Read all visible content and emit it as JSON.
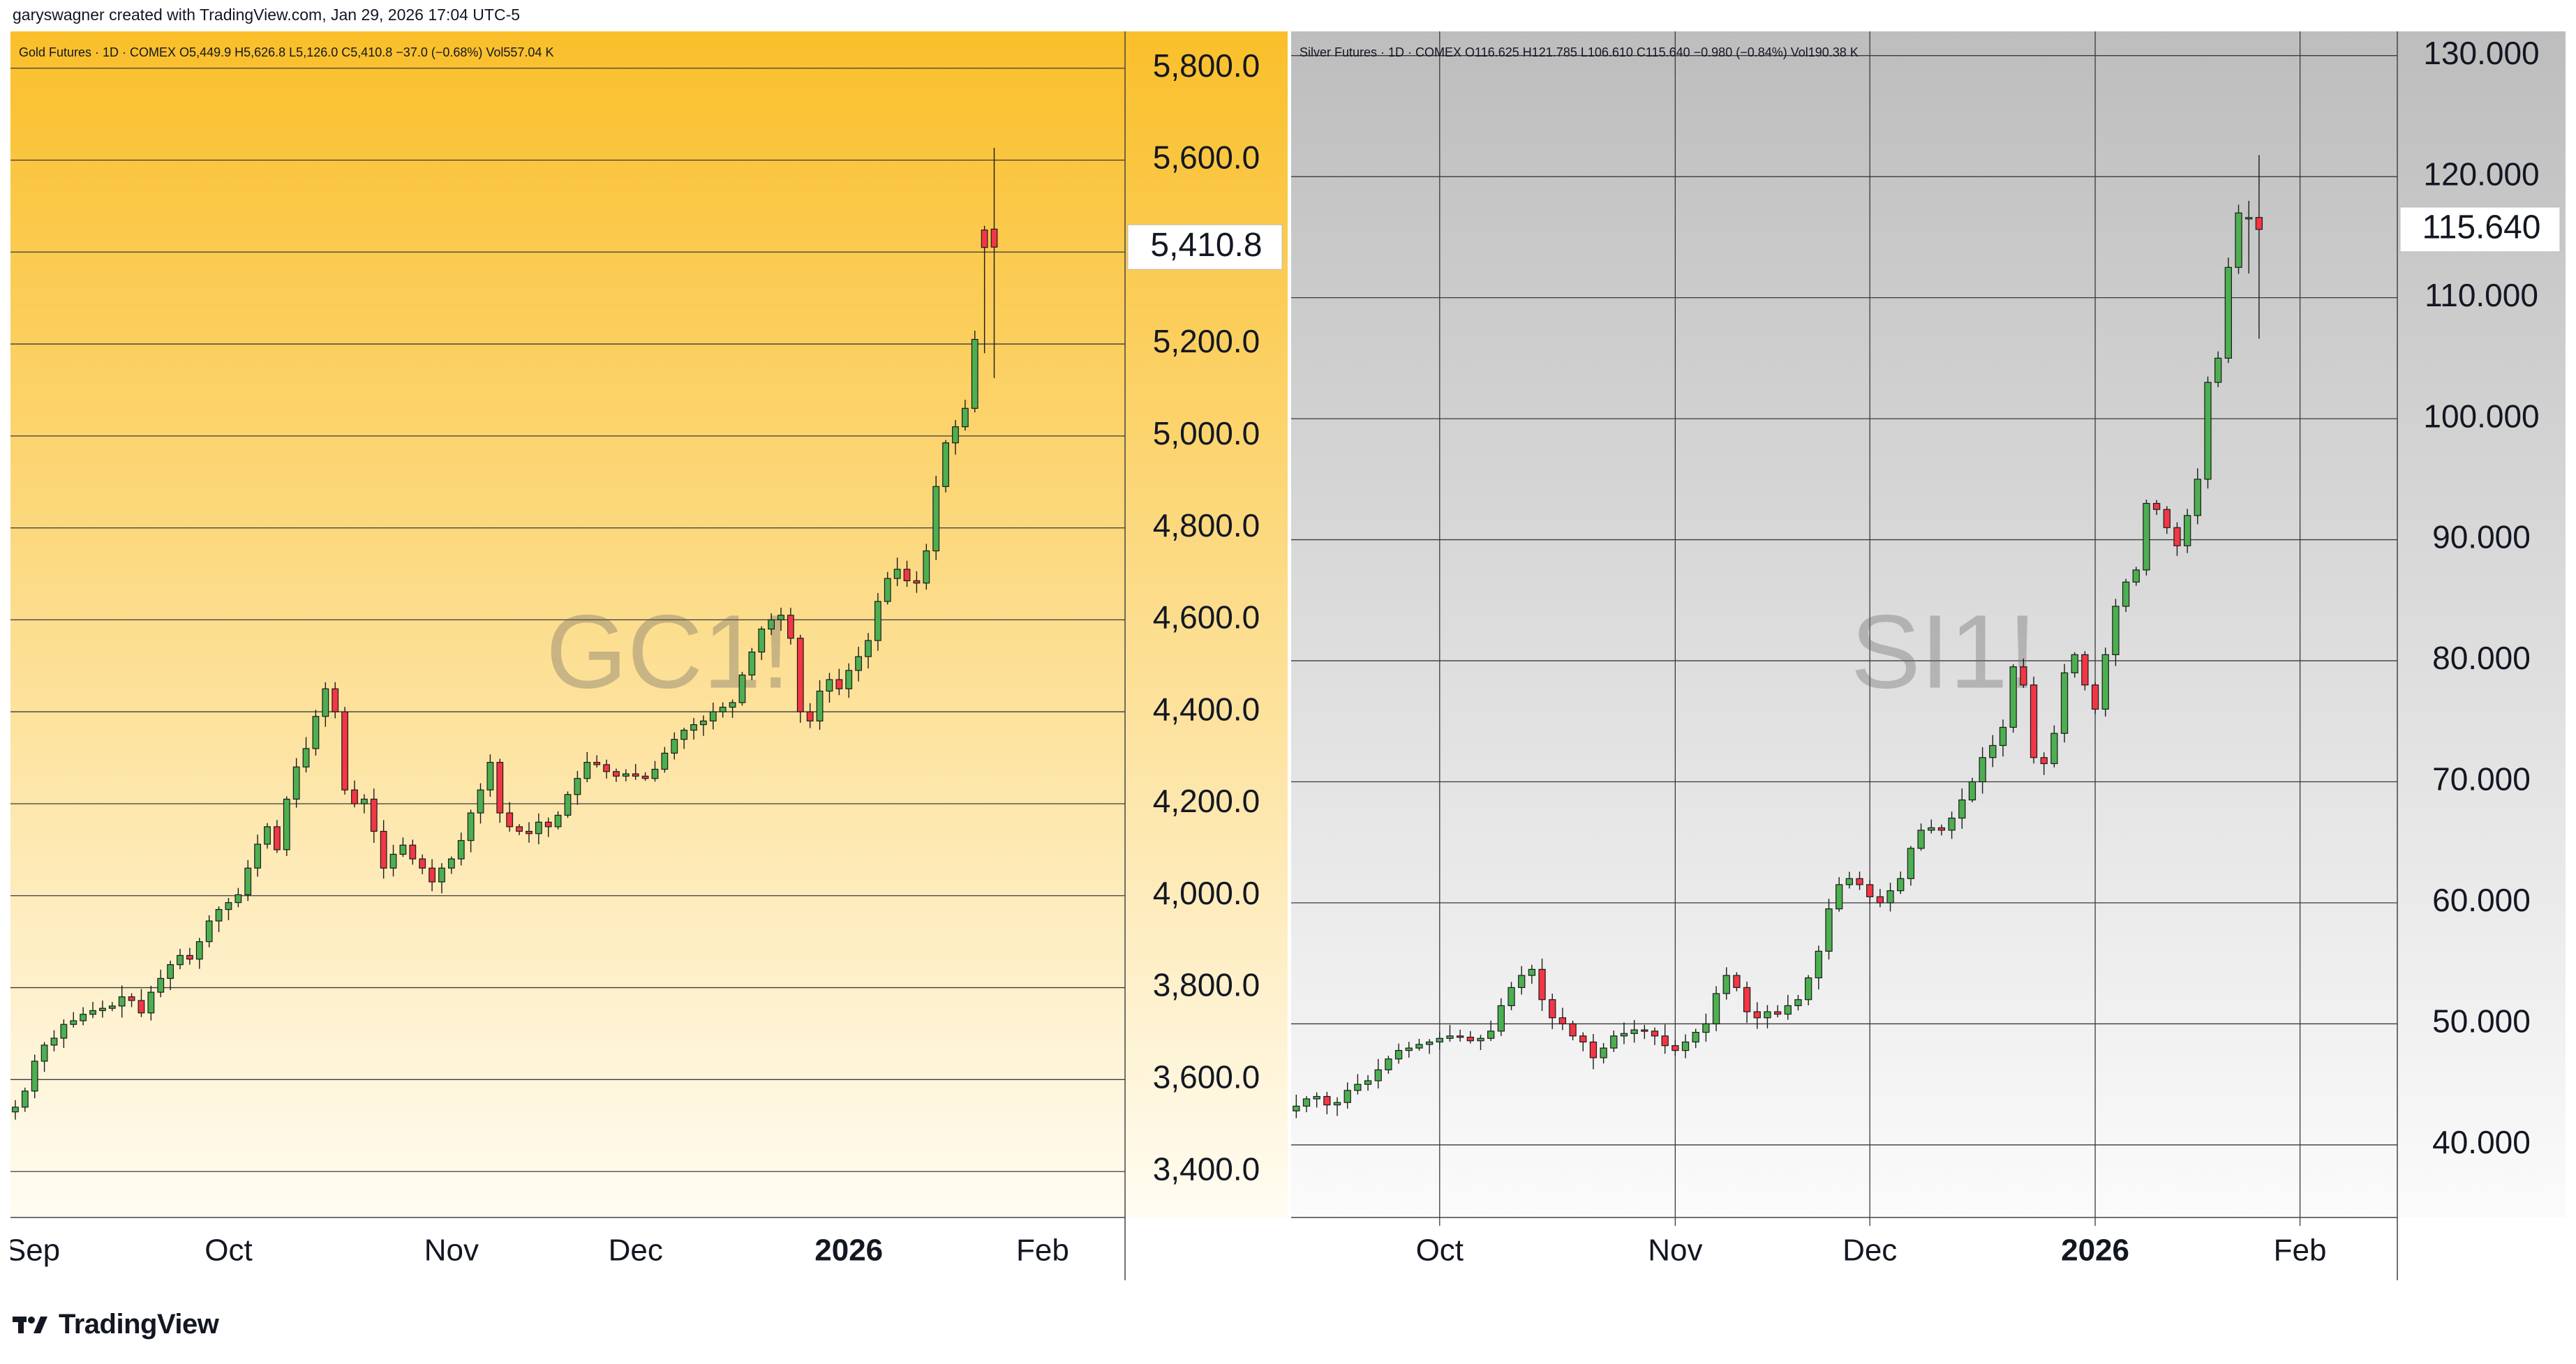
{
  "header": {
    "credit": "garyswagner created with TradingView.com, Jan 29, 2026 17:04 UTC-5"
  },
  "footer": {
    "brand": "TradingView"
  },
  "chart_data": [
    {
      "type": "candlestick",
      "symbol_watermark": "GC1!",
      "legend": "Gold Futures · 1D · COMEX  O5,449.9  H5,626.8  L5,126.0  C5,410.8  −37.0 (−0.68%)  Vol557.04 K",
      "background_gradient": [
        "#fabf2a",
        "#fffcf2"
      ],
      "ylim": [
        3300,
        5880
      ],
      "y_ticks": [
        5800,
        5600,
        5400,
        5200,
        5000,
        4800,
        4600,
        4400,
        4200,
        4000,
        3800,
        3600,
        3400
      ],
      "y_tick_labels": [
        "5,800.0",
        "5,600.0",
        "5,200.0",
        "5,000.0",
        "4,800.0",
        "4,600.0",
        "4,400.0",
        "4,200.0",
        "4,000.0",
        "3,800.0",
        "3,600.0",
        "3,400.0"
      ],
      "last_price": 5410.8,
      "last_price_label": "5,410.8",
      "x_labels": [
        {
          "label": "Sep",
          "index": 0,
          "bold": false
        },
        {
          "label": "Oct",
          "index": 22,
          "bold": false
        },
        {
          "label": "Nov",
          "index": 45,
          "bold": false
        },
        {
          "label": "Dec",
          "index": 64,
          "bold": false
        },
        {
          "label": "2026",
          "index": 86,
          "bold": true
        },
        {
          "label": "Feb",
          "index": 106,
          "bold": false
        }
      ],
      "x_count": 115,
      "vertical_gridlines": false,
      "up_color": "#4caf50",
      "down_color": "#f23645",
      "closes": [
        3540,
        3575,
        3640,
        3675,
        3690,
        3720,
        3728,
        3742,
        3750,
        3755,
        3760,
        3780,
        3772,
        3745,
        3790,
        3820,
        3850,
        3870,
        3862,
        3900,
        3945,
        3970,
        3985,
        4002,
        4060,
        4112,
        4150,
        4100,
        4210,
        4280,
        4320,
        4390,
        4450,
        4400,
        4230,
        4200,
        4210,
        4140,
        4060,
        4090,
        4110,
        4080,
        4060,
        4030,
        4060,
        4080,
        4120,
        4180,
        4230,
        4290,
        4180,
        4150,
        4140,
        4135,
        4160,
        4150,
        4175,
        4220,
        4255,
        4290,
        4285,
        4270,
        4260,
        4265,
        4260,
        4255,
        4275,
        4310,
        4340,
        4360,
        4372,
        4380,
        4400,
        4410,
        4420,
        4480,
        4530,
        4580,
        4600,
        4610,
        4560,
        4400,
        4380,
        4445,
        4470,
        4450,
        4490,
        4520,
        4555,
        4640,
        4690,
        4710,
        4685,
        4680,
        4750,
        4890,
        4985,
        5020,
        5060,
        5210,
        5410,
        5410.8
      ],
      "opens_extra": [
        5447.9,
        5449.9
      ],
      "highs_last": [
        5450,
        5626.8
      ],
      "lows_last": [
        5180,
        5126.0
      ]
    },
    {
      "type": "candlestick",
      "symbol_watermark": "SI1!",
      "legend": "Silver Futures · 1D · COMEX  O116.625  H121.785  L106.610  C115.640  −0.980 (−0.84%)  Vol190.38 K",
      "background_gradient": [
        "#bdbdbd",
        "#fbfbfb"
      ],
      "ylim": [
        34,
        132
      ],
      "y_ticks": [
        130,
        120,
        110,
        100,
        90,
        80,
        70,
        60,
        50,
        40
      ],
      "y_tick_labels": [
        "130.000",
        "120.000",
        "110.000",
        "100.000",
        "90.000",
        "80.000",
        "70.000",
        "60.000",
        "50.000",
        "40.000"
      ],
      "last_price": 115.64,
      "last_price_label": "115.640",
      "x_labels": [
        {
          "label": "Oct",
          "index": 14,
          "bold": false
        },
        {
          "label": "Nov",
          "index": 37,
          "bold": false
        },
        {
          "label": "Dec",
          "index": 56,
          "bold": false
        },
        {
          "label": "2026",
          "index": 78,
          "bold": true
        },
        {
          "label": "Feb",
          "index": 98,
          "bold": false
        }
      ],
      "x_count": 108,
      "vertical_gridlines": true,
      "up_color": "#4caf50",
      "down_color": "#f23645",
      "closes": [
        43.2,
        43.8,
        44.0,
        43.3,
        43.5,
        44.5,
        45.0,
        45.3,
        46.2,
        47.1,
        47.8,
        48.0,
        48.3,
        48.5,
        48.8,
        49.0,
        48.9,
        48.6,
        48.8,
        49.4,
        51.5,
        53.0,
        54.0,
        54.5,
        52.0,
        50.5,
        50.0,
        49.0,
        48.5,
        47.2,
        48.0,
        49.0,
        49.2,
        49.5,
        49.4,
        49.0,
        48.2,
        47.8,
        48.5,
        49.3,
        50.0,
        52.5,
        54.0,
        53.0,
        51.0,
        50.5,
        51.0,
        50.8,
        51.5,
        52.0,
        53.8,
        56.0,
        59.5,
        61.5,
        62.0,
        61.5,
        60.5,
        60.0,
        61.0,
        62.0,
        64.5,
        66.0,
        66.2,
        66.0,
        67.0,
        68.5,
        70.0,
        72.0,
        73.0,
        74.5,
        79.5,
        78.0,
        72.0,
        71.5,
        74.0,
        79.0,
        80.5,
        78.0,
        76.0,
        80.5,
        84.5,
        86.5,
        87.5,
        93.0,
        92.5,
        91.0,
        89.5,
        92.0,
        95.0,
        103.0,
        105.0,
        112.5,
        117.0,
        116.62,
        115.64
      ],
      "opens_extra": [
        116.62,
        116.625
      ],
      "highs_last": [
        118.0,
        121.785
      ],
      "lows_last": [
        112.0,
        106.61
      ]
    }
  ]
}
